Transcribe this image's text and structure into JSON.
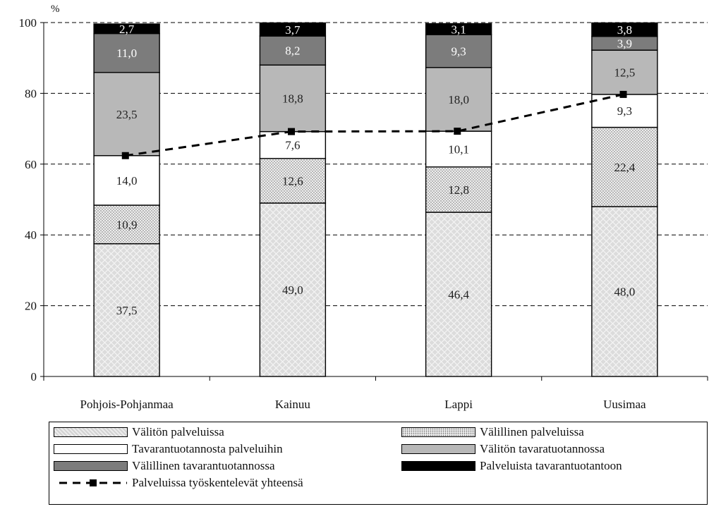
{
  "chart_data": {
    "type": "bar",
    "stacked": true,
    "unit": "%",
    "ylim": [
      0,
      100
    ],
    "yticks": [
      0,
      20,
      40,
      60,
      80,
      100
    ],
    "grid": "horizontal-dashed",
    "categories": [
      "Pohjois-Pohjanmaa",
      "Kainuu",
      "Lappi",
      "Uusimaa"
    ],
    "series": [
      {
        "name": "Välitön palveluissa",
        "values": [
          37.5,
          49.0,
          46.4,
          48.0
        ],
        "labels": [
          "37,5",
          "49,0",
          "46,4",
          "48,0"
        ],
        "color": "#dcdcdc",
        "pattern": "diamond"
      },
      {
        "name": "Välillinen palveluissa",
        "values": [
          10.9,
          12.6,
          12.8,
          22.4
        ],
        "labels": [
          "10,9",
          "12,6",
          "12,8",
          "22,4"
        ],
        "color": "#e6e6e6",
        "pattern": "dots"
      },
      {
        "name": "Tavarantuotannosta palveluihin",
        "values": [
          14.0,
          7.6,
          10.1,
          9.3
        ],
        "labels": [
          "14,0",
          "7,6",
          "10,1",
          "9,3"
        ],
        "color": "#ffffff",
        "pattern": "none"
      },
      {
        "name": "Välitön tavaratuotannossa",
        "values": [
          23.5,
          18.8,
          18.0,
          12.5
        ],
        "labels": [
          "23,5",
          "18,8",
          "18,0",
          "12,5"
        ],
        "color": "#b8b8b8",
        "pattern": "none"
      },
      {
        "name": "Välillinen tavarantuotannossa",
        "values": [
          11.0,
          8.2,
          9.3,
          3.9
        ],
        "labels": [
          "11,0",
          "8,2",
          "9,3",
          "3,9"
        ],
        "color": "#7c7c7c",
        "pattern": "none"
      },
      {
        "name": "Palveluista tavarantuotantoon",
        "values": [
          2.7,
          3.7,
          3.1,
          3.8
        ],
        "labels": [
          "2,7",
          "3,7",
          "3,1",
          "3,8"
        ],
        "color": "#000000",
        "pattern": "none"
      }
    ],
    "line_series": {
      "name": "Palveluissa työskentelevät yhteensä",
      "values": [
        62.4,
        69.2,
        69.3,
        79.7
      ],
      "style": "dashed",
      "marker": "square",
      "color": "#000000"
    },
    "legend_position": "bottom"
  }
}
